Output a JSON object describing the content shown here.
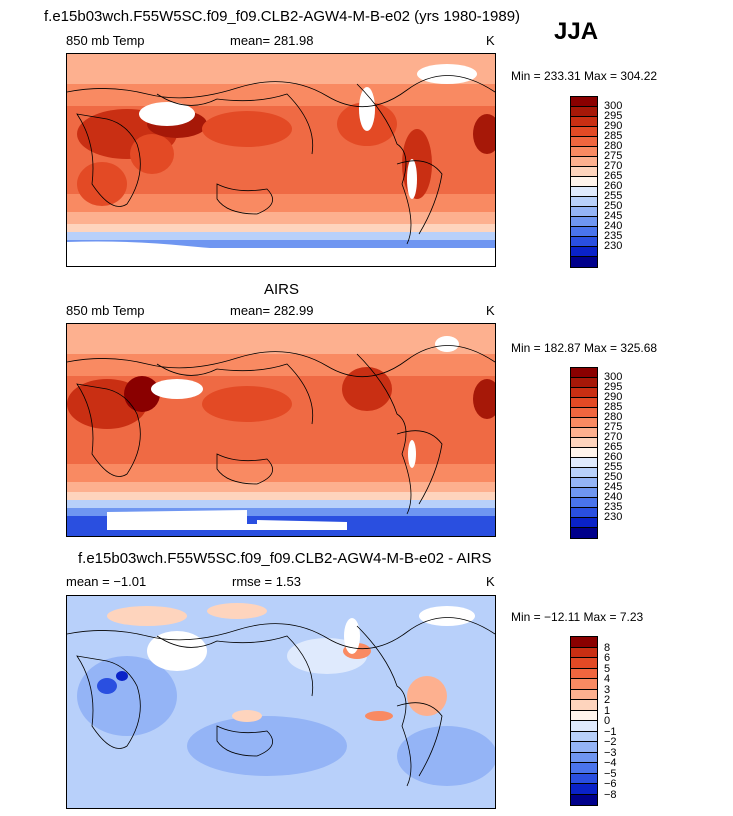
{
  "season": "JJA",
  "colors": {
    "abs_scale": [
      "#00008b",
      "#0a22c8",
      "#2a4fe0",
      "#4a74ec",
      "#6f96f1",
      "#94b4f6",
      "#b8d0fa",
      "#dfeafd",
      "#fff4ec",
      "#fed4bd",
      "#fdb08f",
      "#f98a62",
      "#f0663f",
      "#e34a25",
      "#c92f13",
      "#a61808",
      "#8a0000"
    ],
    "diff_scale": [
      "#00008b",
      "#0a22c8",
      "#2a4fe0",
      "#4a74ec",
      "#6f96f1",
      "#94b4f6",
      "#b8d0fa",
      "#dfeafd",
      "#fff4ec",
      "#fed4bd",
      "#fdb08f",
      "#f98a62",
      "#f0663f",
      "#e34a25",
      "#c92f13",
      "#8a0000"
    ]
  },
  "panels": [
    {
      "title": "f.e15b03wch.F55W5SC.f09_f09.CLB2-AGW4-M-B-e02 (yrs 1980-1989)",
      "left_label": "850 mb Temp",
      "mean_label": "mean= 281.98",
      "units": "K",
      "minmax": "Min = 233.31 Max = 304.22",
      "colorbar_labels": [
        "300",
        "295",
        "290",
        "285",
        "280",
        "275",
        "270",
        "265",
        "260",
        "255",
        "250",
        "245",
        "240",
        "235",
        "230"
      ]
    },
    {
      "title": "AIRS",
      "left_label": "850 mb Temp",
      "mean_label": "mean= 282.99",
      "units": "K",
      "minmax": "Min = 182.87 Max = 325.68",
      "colorbar_labels": [
        "300",
        "295",
        "290",
        "285",
        "280",
        "275",
        "270",
        "265",
        "260",
        "255",
        "250",
        "245",
        "240",
        "235",
        "230"
      ]
    },
    {
      "title": "f.e15b03wch.F55W5SC.f09_f09.CLB2-AGW4-M-B-e02 - AIRS",
      "left_label": "mean = −1.01",
      "mean_label": "rmse =   1.53",
      "units": "K",
      "minmax": "Min = −12.11 Max =   7.23",
      "colorbar_labels": [
        "8",
        "6",
        "5",
        "4",
        "3",
        "2",
        "1",
        "0",
        "−1",
        "−2",
        "−3",
        "−4",
        "−5",
        "−6",
        "−8"
      ]
    }
  ]
}
